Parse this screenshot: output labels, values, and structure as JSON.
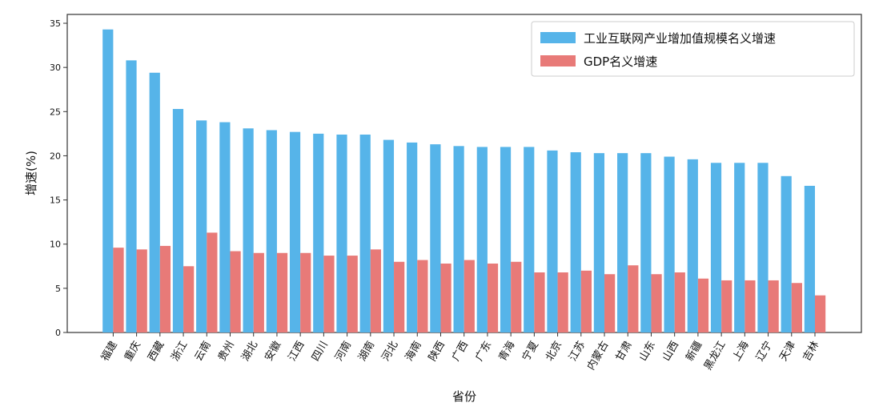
{
  "chart_data": {
    "type": "bar",
    "title": "",
    "xlabel": "省份",
    "ylabel": "增速(%)",
    "ylim": [
      0,
      36
    ],
    "yticks": [
      0,
      5,
      10,
      15,
      20,
      25,
      30,
      35
    ],
    "grid": false,
    "legend_position": "top-right",
    "categories": [
      "福建",
      "重庆",
      "西藏",
      "浙江",
      "云南",
      "贵州",
      "湖北",
      "安徽",
      "江西",
      "四川",
      "河南",
      "湖南",
      "河北",
      "海南",
      "陕西",
      "广西",
      "广东",
      "青海",
      "宁夏",
      "北京",
      "江苏",
      "内蒙古",
      "甘肃",
      "山东",
      "山西",
      "新疆",
      "黑龙江",
      "上海",
      "辽宁",
      "天津",
      "吉林"
    ],
    "series": [
      {
        "name": "工业互联网产业增加值规模名义增速",
        "color": "#56b4e9",
        "values": [
          34.3,
          30.8,
          29.4,
          25.3,
          24.0,
          23.8,
          23.1,
          22.9,
          22.7,
          22.5,
          22.4,
          22.4,
          21.8,
          21.5,
          21.3,
          21.1,
          21.0,
          21.0,
          21.0,
          20.6,
          20.4,
          20.3,
          20.3,
          20.3,
          19.9,
          19.6,
          19.2,
          19.2,
          19.2,
          17.7,
          16.6
        ]
      },
      {
        "name": "GDP名义增速",
        "color": "#e87a78",
        "values": [
          9.6,
          9.4,
          9.8,
          7.5,
          11.3,
          9.2,
          9.0,
          9.0,
          9.0,
          8.7,
          8.7,
          9.4,
          8.0,
          8.2,
          7.8,
          8.2,
          7.8,
          8.0,
          6.8,
          6.8,
          7.0,
          6.6,
          7.6,
          6.6,
          6.8,
          6.1,
          5.9,
          5.9,
          5.9,
          5.6,
          4.2
        ]
      }
    ]
  }
}
